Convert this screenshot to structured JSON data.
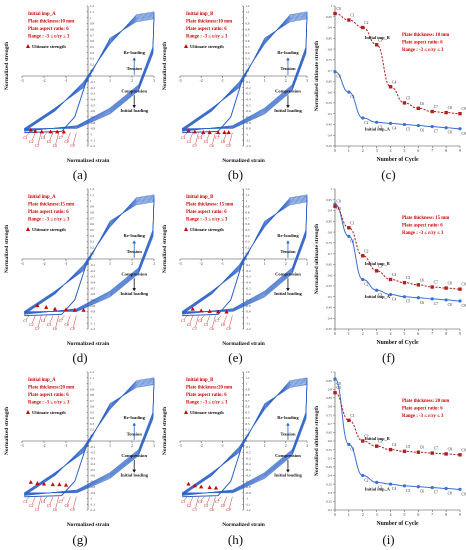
{
  "colors": {
    "hyst": "#2b62c8",
    "red": "#cc0000",
    "imp_a": "#3c6fd4",
    "imp_b": "#b12020"
  },
  "chart_data": [
    {
      "id": "a",
      "type": "line",
      "label": "(a)",
      "ylabel": "Normalized strength",
      "xlabel": "Normalized strain",
      "xlim": [
        -3,
        3
      ],
      "ylim": [
        -1.2,
        1.2
      ],
      "xticks": [
        -3,
        -2,
        -1,
        0,
        1,
        2,
        3
      ],
      "yticks": [
        1.2,
        1.1,
        1.0,
        0.9,
        0.8,
        0.7,
        0.6,
        0.5,
        0.4,
        0.3,
        0.2,
        0.1,
        0.0,
        -0.1,
        -0.2,
        -0.3,
        -0.4,
        -0.5,
        -0.6,
        -0.7,
        -0.8,
        -0.9,
        -1.0,
        -1.1,
        -1.2
      ],
      "info": [
        "Initial imp_A",
        "Plate thickness:10 mm",
        "Plate aspect ratio: 6",
        "Range : -3 ≤ ε/εy ≤ 3"
      ],
      "legend": "Ultimate strength",
      "guide": {
        "reloading": "Re-loading",
        "tension": "Tension",
        "compression": "Compression",
        "initial": "Initial loading"
      },
      "ult_pts": [
        {
          "x": -2.6,
          "y": -0.93
        },
        {
          "x": -2.4,
          "y": -0.95
        },
        {
          "x": -2.1,
          "y": -0.96
        },
        {
          "x": -1.7,
          "y": -0.96
        },
        {
          "x": -1.4,
          "y": -0.96
        },
        {
          "x": -1.1,
          "y": -0.96
        }
      ],
      "pt_labels": [
        "C1",
        "C2",
        "C3",
        "C4",
        "C5",
        "C6",
        "C7",
        "C8",
        "C9"
      ],
      "cycles": 9
    },
    {
      "id": "b",
      "type": "line",
      "label": "(b)",
      "ylabel": "Normalized strength",
      "xlabel": "Normalized strain",
      "xlim": [
        -3,
        3
      ],
      "ylim": [
        -1.2,
        1.2
      ],
      "xticks": [
        -3,
        -2,
        -1,
        0,
        1,
        2,
        3
      ],
      "yticks": [
        1.2,
        1.1,
        1.0,
        0.9,
        0.8,
        0.7,
        0.6,
        0.5,
        0.4,
        0.3,
        0.2,
        0.1,
        0.0,
        -0.1,
        -0.2,
        -0.3,
        -0.4,
        -0.5,
        -0.6,
        -0.7,
        -0.8,
        -0.9,
        -1.0,
        -1.1,
        -1.2
      ],
      "info": [
        "Initial imp_B",
        "Plate thickness:10 mm",
        "Plate aspect ratio: 6",
        "Range : -3 ≤ ε/εy ≤ 3"
      ],
      "legend": "Ultimate strength",
      "guide": {
        "reloading": "Re-loading",
        "tension": "Tension",
        "compression": "Compression",
        "initial": "Initial loading"
      },
      "ult_pts": [
        {
          "x": -2.6,
          "y": -0.94
        },
        {
          "x": -2.3,
          "y": -0.96
        },
        {
          "x": -1.9,
          "y": -0.97
        },
        {
          "x": -1.6,
          "y": -0.97
        },
        {
          "x": -1.2,
          "y": -0.97
        },
        {
          "x": -0.9,
          "y": -0.97
        },
        {
          "x": -0.7,
          "y": -0.97
        }
      ],
      "pt_labels": [
        "C1",
        "C2",
        "C3",
        "C4",
        "C5",
        "C6",
        "C7",
        "C8",
        "C9"
      ],
      "cycles": 9
    },
    {
      "id": "c",
      "type": "line",
      "label": "(c)",
      "ylabel": "Normalized ultimate strength",
      "xlabel": "Number of Cycle",
      "xlim": [
        0,
        9
      ],
      "ylim": [
        0.35,
        1.0
      ],
      "xticks": [
        0,
        1,
        2,
        3,
        4,
        5,
        6,
        7,
        8,
        9
      ],
      "yticks": [
        1.0,
        0.95,
        0.9,
        0.85,
        0.8,
        0.75,
        0.7,
        0.65,
        0.6,
        0.55,
        0.5,
        0.45,
        0.4,
        0.35
      ],
      "info": [
        "Plate thickness: 10 mm",
        "Plate aspect ratio: 6",
        "Range : -3 ≤ ε/εy ≤ 3"
      ],
      "series": [
        {
          "name": "Initial imp_A",
          "color": "#3c6fd4",
          "values": [
            0.695,
            0.6,
            0.48,
            0.46,
            0.455,
            0.45,
            0.445,
            0.44,
            0.435,
            0.43
          ]
        },
        {
          "name": "Initial imp_B",
          "color": "#b12020",
          "values": [
            0.965,
            0.935,
            0.9,
            0.82,
            0.625,
            0.55,
            0.525,
            0.51,
            0.505,
            0.5
          ]
        }
      ],
      "pt_labels": [
        "C0",
        "C1",
        "C2",
        "C3",
        "C4",
        "C5",
        "C6",
        "C7",
        "C8",
        "C9"
      ]
    },
    {
      "id": "d",
      "type": "line",
      "label": "(d)",
      "ylabel": "Normalized strength",
      "xlabel": "Normalized strain",
      "xlim": [
        -3,
        3
      ],
      "ylim": [
        -1.2,
        1.2
      ],
      "xticks": [
        -3,
        -2,
        -1,
        0,
        1,
        2,
        3
      ],
      "yticks": [
        1.2,
        1.1,
        1.0,
        0.9,
        0.8,
        0.7,
        0.6,
        0.5,
        0.4,
        0.3,
        0.2,
        0.1,
        0.0,
        -0.1,
        -0.2,
        -0.3,
        -0.4,
        -0.5,
        -0.6,
        -0.7,
        -0.8,
        -0.9,
        -1.0,
        -1.1,
        -1.2
      ],
      "info": [
        "Initial imp_A",
        "Plate thickness:15 mm",
        "Plate aspect ratio: 6",
        "Range : -3 ≤ ε/εy ≤ 3"
      ],
      "legend": "Ultimate strength",
      "guide": {
        "reloading": "Re-loading",
        "tension": "Tension",
        "compression": "Compression",
        "initial": "Initial loading"
      },
      "ult_pts": [
        {
          "x": -2.3,
          "y": -0.8
        },
        {
          "x": -1.9,
          "y": -0.83
        },
        {
          "x": -1.5,
          "y": -0.86
        },
        {
          "x": -1.0,
          "y": -0.87
        },
        {
          "x": -0.6,
          "y": -0.88
        },
        {
          "x": -0.2,
          "y": -0.88
        }
      ],
      "pt_labels": [
        "C1",
        "C2",
        "C3",
        "C4",
        "C5",
        "C6",
        "C7",
        "C8",
        "C9"
      ],
      "cycles": 9
    },
    {
      "id": "e",
      "type": "line",
      "label": "(e)",
      "ylabel": "Normalized strength",
      "xlabel": "Normalized strain",
      "xlim": [
        -3,
        3
      ],
      "ylim": [
        -1.2,
        1.2
      ],
      "xticks": [
        -3,
        -2,
        -1,
        0,
        1,
        2,
        3
      ],
      "yticks": [
        1.2,
        1.1,
        1.0,
        0.9,
        0.8,
        0.7,
        0.6,
        0.5,
        0.4,
        0.3,
        0.2,
        0.1,
        0.0,
        -0.1,
        -0.2,
        -0.3,
        -0.4,
        -0.5,
        -0.6,
        -0.7,
        -0.8,
        -0.9,
        -1.0,
        -1.1,
        -1.2
      ],
      "info": [
        "Initial imp_B",
        "Plate thickness: 15 mm",
        "Plate aspect ratio: 6",
        "Range : -3 ≤ ε/εy ≤ 3"
      ],
      "legend": "Ultimate strength",
      "guide": {
        "reloading": "Re-loading",
        "tension": "Tension",
        "compression": "Compression",
        "initial": "Initial loading"
      },
      "ult_pts": [
        {
          "x": -2.4,
          "y": -0.86
        },
        {
          "x": -2.0,
          "y": -0.89
        },
        {
          "x": -1.6,
          "y": -0.9
        },
        {
          "x": -1.2,
          "y": -0.91
        },
        {
          "x": -0.8,
          "y": -0.91
        }
      ],
      "pt_labels": [
        "C1",
        "C2",
        "C3",
        "C4",
        "C5",
        "C6",
        "C7",
        "C8",
        "C9"
      ],
      "cycles": 9
    },
    {
      "id": "f",
      "type": "line",
      "label": "(f)",
      "ylabel": "Normalized ultimate strength",
      "xlabel": "Number of Cycle",
      "xlim": [
        0,
        9
      ],
      "ylim": [
        0.35,
        1.0
      ],
      "xticks": [
        0,
        1,
        2,
        3,
        4,
        5,
        6,
        7,
        8,
        9
      ],
      "yticks": [
        1.0,
        0.95,
        0.9,
        0.85,
        0.8,
        0.75,
        0.7,
        0.65,
        0.6,
        0.55,
        0.5,
        0.45,
        0.4,
        0.35
      ],
      "info": [
        "Plate thickness: 15 mm",
        "Plate aspect ratio: 6",
        "Range : -3 ≤ ε/εy ≤ 3"
      ],
      "series": [
        {
          "name": "Initial imp_A",
          "color": "#3c6fd4",
          "values": [
            0.93,
            0.78,
            0.58,
            0.53,
            0.51,
            0.5,
            0.495,
            0.49,
            0.485,
            0.48
          ]
        },
        {
          "name": "Initial imp_B",
          "color": "#b12020",
          "values": [
            0.92,
            0.82,
            0.69,
            0.62,
            0.58,
            0.565,
            0.555,
            0.545,
            0.54,
            0.535
          ]
        }
      ],
      "pt_labels": [
        "C0",
        "C1",
        "C2",
        "C3",
        "C4",
        "C5",
        "C6",
        "C7",
        "C8",
        "C9"
      ]
    },
    {
      "id": "g",
      "type": "line",
      "label": "(g)",
      "ylabel": "Normalized strength",
      "xlabel": "Normalized strain",
      "xlim": [
        -3,
        3
      ],
      "ylim": [
        -1.2,
        1.2
      ],
      "xticks": [
        -3,
        -2,
        -1,
        0,
        1,
        2,
        3
      ],
      "yticks": [
        1.2,
        1.1,
        1.0,
        0.9,
        0.8,
        0.7,
        0.6,
        0.5,
        0.4,
        0.3,
        0.2,
        0.1,
        0.0,
        -0.1,
        -0.2,
        -0.3,
        -0.4,
        -0.5,
        -0.6,
        -0.7,
        -0.8,
        -0.9,
        -1.0,
        -1.1,
        -1.2
      ],
      "info": [
        "Initial imp_A",
        "Plate thickness:20 mm",
        "Plate aspect ratio: 6",
        "Range : -3 ≤ ε/εy ≤ 3"
      ],
      "legend": "Ultimate strength",
      "guide": {
        "reloading": "Re-loading",
        "tension": "Tension",
        "compression": "Compression",
        "initial": "Initial loading"
      },
      "ult_pts": [
        {
          "x": -2.6,
          "y": -0.72
        },
        {
          "x": -2.3,
          "y": -0.74
        },
        {
          "x": -2.0,
          "y": -0.75
        },
        {
          "x": -1.6,
          "y": -0.76
        },
        {
          "x": -1.3,
          "y": -0.76
        },
        {
          "x": -1.0,
          "y": -0.77
        }
      ],
      "pt_labels": [
        "C1",
        "C2",
        "C3",
        "C4",
        "C5",
        "C6",
        "C7",
        "C8",
        "C9"
      ],
      "cycles": 9
    },
    {
      "id": "h",
      "type": "line",
      "label": "(h)",
      "ylabel": "Normalized strength",
      "xlabel": "Normalized strain",
      "xlim": [
        -3,
        3
      ],
      "ylim": [
        -1.2,
        1.2
      ],
      "xticks": [
        -3,
        -2,
        -1,
        0,
        1,
        2,
        3
      ],
      "yticks": [
        1.2,
        1.1,
        1.0,
        0.9,
        0.8,
        0.7,
        0.6,
        0.5,
        0.4,
        0.3,
        0.2,
        0.1,
        0.0,
        -0.1,
        -0.2,
        -0.3,
        -0.4,
        -0.5,
        -0.6,
        -0.7,
        -0.8,
        -0.9,
        -1.0,
        -1.1,
        -1.2
      ],
      "info": [
        "Initial imp_B",
        "Plate thickness:20 mm",
        "Plate aspect ratio: 6",
        "Range : -3 ≤ ε/εy ≤ 3"
      ],
      "legend": "Ultimate strength",
      "guide": {
        "reloading": "Re-loading",
        "tension": "Tension",
        "compression": "Compression",
        "initial": "Initial loading"
      },
      "ult_pts": [
        {
          "x": -2.6,
          "y": -0.75
        },
        {
          "x": -2.3,
          "y": -0.78
        },
        {
          "x": -2.0,
          "y": -0.8
        },
        {
          "x": -1.6,
          "y": -0.81
        },
        {
          "x": -1.3,
          "y": -0.82
        }
      ],
      "pt_labels": [
        "C1",
        "C2",
        "C3",
        "C4",
        "C5",
        "C6",
        "C7",
        "C8",
        "C9"
      ],
      "cycles": 9
    },
    {
      "id": "i",
      "type": "line",
      "label": "(i)",
      "ylabel": "Normalized ultimate strength",
      "xlabel": "Number of Cycle",
      "xlim": [
        0,
        9
      ],
      "ylim": [
        0.2,
        1.0
      ],
      "xticks": [
        0,
        1,
        2,
        3,
        4,
        5,
        6,
        7,
        8,
        9
      ],
      "yticks": [
        1.0,
        0.95,
        0.9,
        0.85,
        0.8,
        0.75,
        0.7,
        0.65,
        0.6,
        0.55,
        0.5,
        0.45,
        0.4,
        0.35,
        0.3,
        0.25,
        0.2
      ],
      "info": [
        "Plate thickness: 20 mm",
        "Plate aspect ratio: 6",
        "Range : -3 ≤ ε/εy ≤ 3"
      ],
      "series": [
        {
          "name": "Initial imp_A",
          "color": "#3c6fd4",
          "values": [
            0.96,
            0.58,
            0.4,
            0.36,
            0.35,
            0.34,
            0.335,
            0.33,
            0.325,
            0.32
          ]
        },
        {
          "name": "Initial imp_B",
          "color": "#b12020",
          "values": [
            0.88,
            0.72,
            0.6,
            0.57,
            0.55,
            0.54,
            0.535,
            0.53,
            0.525,
            0.52
          ]
        }
      ],
      "pt_labels": [
        "C0",
        "C1",
        "C2",
        "C3",
        "C4",
        "C5",
        "C6",
        "C7",
        "C8",
        "C9"
      ]
    }
  ]
}
